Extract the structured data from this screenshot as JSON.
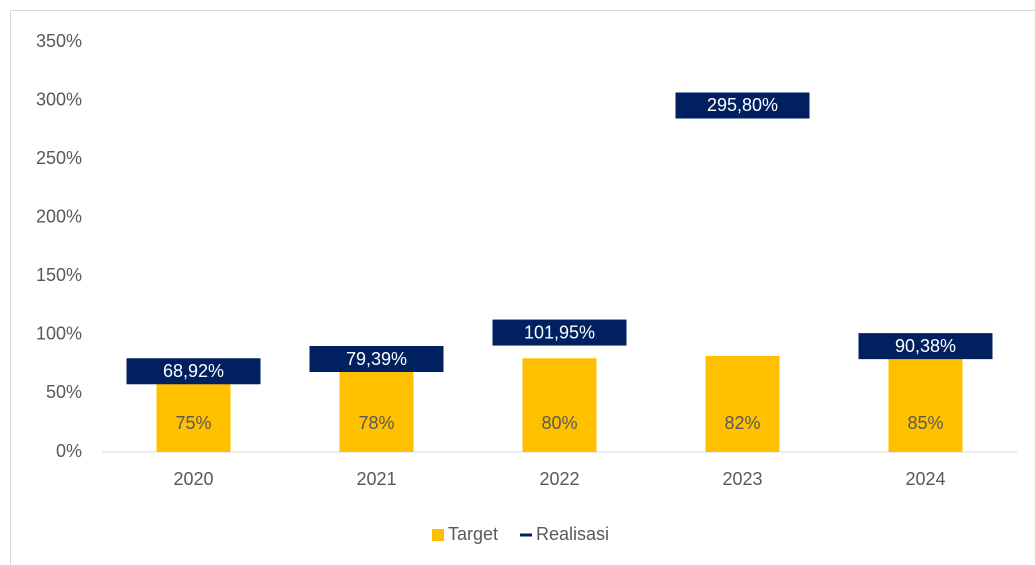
{
  "chart_data": {
    "type": "bar",
    "categories": [
      "2020",
      "2021",
      "2022",
      "2023",
      "2024"
    ],
    "series": [
      {
        "name": "Target",
        "type": "bar",
        "color": "#ffc000",
        "values": [
          75,
          78,
          80,
          82,
          85
        ],
        "value_labels": [
          "75%",
          "78%",
          "80%",
          "82%",
          "85%"
        ]
      },
      {
        "name": "Realisasi",
        "type": "line",
        "color": "#002060",
        "values": [
          68.92,
          79.39,
          101.95,
          295.8,
          90.38
        ],
        "value_labels": [
          "68,92%",
          "79,39%",
          "101,95%",
          "295,80%",
          "90,38%"
        ]
      }
    ],
    "ylim": [
      0,
      350
    ],
    "yticks": [
      {
        "value": 0,
        "label": "0%"
      },
      {
        "value": 50,
        "label": "50%"
      },
      {
        "value": 100,
        "label": "100%"
      },
      {
        "value": 150,
        "label": "150%"
      },
      {
        "value": 200,
        "label": "200%"
      },
      {
        "value": 250,
        "label": "250%"
      },
      {
        "value": 300,
        "label": "300%"
      },
      {
        "value": 350,
        "label": "350%"
      }
    ],
    "grid": false,
    "legend": "bottom"
  }
}
